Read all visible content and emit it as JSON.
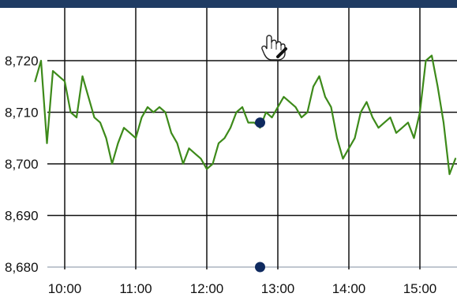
{
  "colors": {
    "header_bar": "#1f3b63",
    "series": "#3d8a1a",
    "marker": "#0f2a5f"
  },
  "icons": {
    "cursor": "hand-cursor-icon"
  },
  "chart_data": {
    "type": "line",
    "title": "",
    "xlabel": "",
    "ylabel": "",
    "x_ticks": [
      "10:00",
      "11:00",
      "12:00",
      "13:00",
      "14:00",
      "15:00"
    ],
    "y_ticks": [
      "8,680",
      "8,690",
      "8,700",
      "8,710",
      "8,720"
    ],
    "xlim": [
      "09:35",
      "15:30"
    ],
    "ylim": [
      8677,
      8728
    ],
    "grid": true,
    "series": [
      {
        "x": [
          "09:35",
          "09:40",
          "09:45",
          "09:50",
          "09:55",
          "10:00",
          "10:05",
          "10:10",
          "10:15",
          "10:20",
          "10:25",
          "10:30",
          "10:35",
          "10:40",
          "10:45",
          "10:50",
          "10:55",
          "11:00",
          "11:05",
          "11:10",
          "11:15",
          "11:20",
          "11:25",
          "11:30",
          "11:35",
          "11:40",
          "11:45",
          "11:50",
          "11:55",
          "12:00",
          "12:05",
          "12:10",
          "12:15",
          "12:20",
          "12:25",
          "12:30",
          "12:35",
          "12:40",
          "12:45",
          "12:50",
          "12:55",
          "13:00",
          "13:05",
          "13:10",
          "13:15",
          "13:20",
          "13:25",
          "13:30",
          "13:35",
          "13:40",
          "13:45",
          "13:50",
          "13:55",
          "14:00",
          "14:05",
          "14:10",
          "14:15",
          "14:20",
          "14:25",
          "14:30",
          "14:35",
          "14:40",
          "14:45",
          "14:50",
          "14:55",
          "15:00",
          "15:05",
          "15:10",
          "15:15",
          "15:20",
          "15:25",
          "15:30"
        ],
        "values": [
          8716,
          8720,
          8704,
          8718,
          8717,
          8716,
          8710,
          8709,
          8717,
          8713,
          8709,
          8708,
          8705,
          8700,
          8704,
          8707,
          8706,
          8705,
          8709,
          8711,
          8710,
          8711,
          8710,
          8706,
          8704,
          8700,
          8703,
          8702,
          8701,
          8699,
          8700,
          8704,
          8705,
          8707,
          8710,
          8711,
          8708,
          8708,
          8707,
          8710,
          8709,
          8711,
          8713,
          8712,
          8711,
          8709,
          8710,
          8715,
          8717,
          8713,
          8711,
          8705,
          8701,
          8703,
          8705,
          8710,
          8712,
          8709,
          8707,
          8708,
          8709,
          8706,
          8707,
          8708,
          8705,
          8710,
          8720,
          8721,
          8715,
          8708,
          8698,
          8701
        ]
      }
    ],
    "markers": [
      {
        "x": "12:45",
        "y": 8708
      },
      {
        "x": "12:45",
        "y": 8680
      }
    ]
  }
}
